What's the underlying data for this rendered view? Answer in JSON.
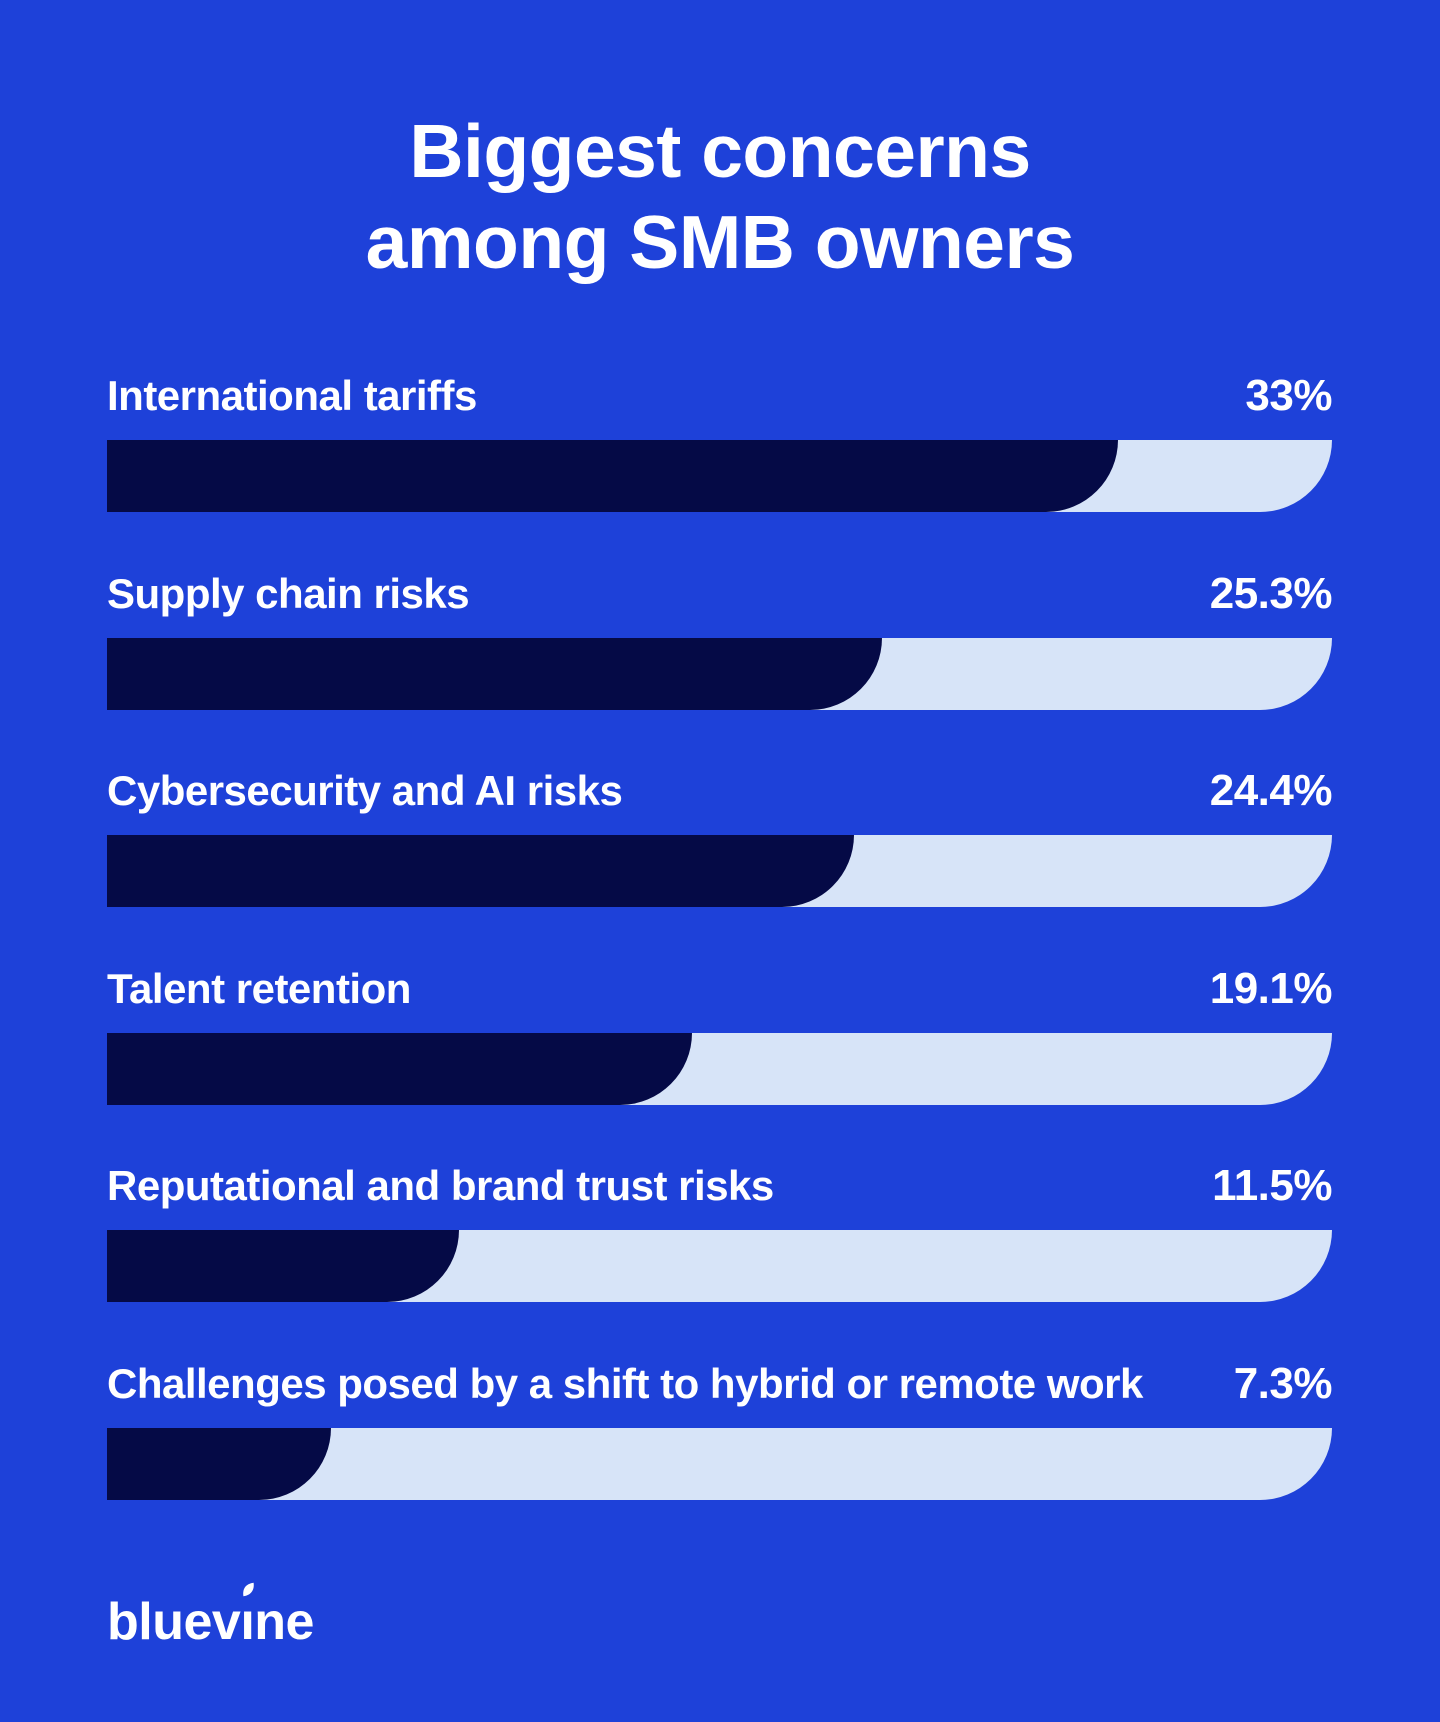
{
  "page": {
    "background": "#1E41D9",
    "text_color": "#FFFFFF"
  },
  "title": {
    "line1": "Biggest concerns",
    "line2": "among SMB owners"
  },
  "chart_data": {
    "type": "bar",
    "orientation": "horizontal",
    "title": "Biggest concerns among SMB owners",
    "categories": [
      "International tariffs",
      "Supply chain risks",
      "Cybersecurity and AI risks",
      "Talent retention",
      "Reputational and brand trust risks",
      "Challenges posed by a shift to hybrid or remote work"
    ],
    "values": [
      33,
      25.3,
      24.4,
      19.1,
      11.5,
      7.3
    ],
    "value_labels": [
      "33%",
      "25.3%",
      "24.4%",
      "19.1%",
      "11.5%",
      "7.3%"
    ],
    "unit": "%",
    "xlim": [
      0,
      40
    ],
    "grid": false,
    "legend": false,
    "bar_color": "#050A46",
    "track_color": "#D7E4F8",
    "label_color": "#FFFFFF"
  },
  "logo": {
    "name": "bluevine",
    "text_before_i": "bluev",
    "dotless_i": "ı",
    "text_after_i": "ne",
    "color": "#FFFFFF"
  }
}
